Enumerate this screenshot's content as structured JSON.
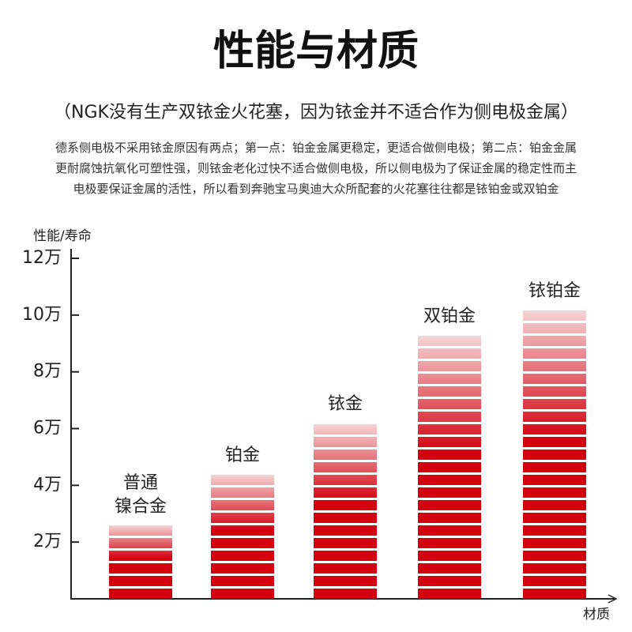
{
  "chart_data": {
    "type": "bar",
    "title": "性能与材质",
    "subtitle": "（NGK没有生产双铱金火花塞，因为铱金并不适合作为侧电极金属）",
    "description": [
      "德系侧电极不采用铱金原因有两点；第一点：铂金金属更稳定，更适合做侧电极；第二点：铂金金属",
      "更耐腐蚀抗氧化可塑性强，则铱金老化过快不适合做侧电极，所以侧电极为了保证金属的稳定性而主",
      "电极要保证金属的活性，所以看到奔驰宝马奥迪大众所配套的火花塞往往都是铱铂金或双铂金"
    ],
    "y_label": "性能/寿命",
    "x_label": "材质",
    "categories": [
      "普通\n镍合金",
      "铂金",
      "铱金",
      "双铂金",
      "铱铂金"
    ],
    "values": [
      2.6,
      4.4,
      6.2,
      9.3,
      10.2
    ],
    "color": "#d4000f",
    "ylim": [
      0,
      12
    ],
    "yticks": [
      {
        "value": 2,
        "label": "2万"
      },
      {
        "value": 4,
        "label": "4万"
      },
      {
        "value": 6,
        "label": "6万"
      },
      {
        "value": 8,
        "label": "8万"
      },
      {
        "value": 10,
        "label": "10万"
      },
      {
        "value": 12,
        "label": "12万"
      }
    ]
  }
}
